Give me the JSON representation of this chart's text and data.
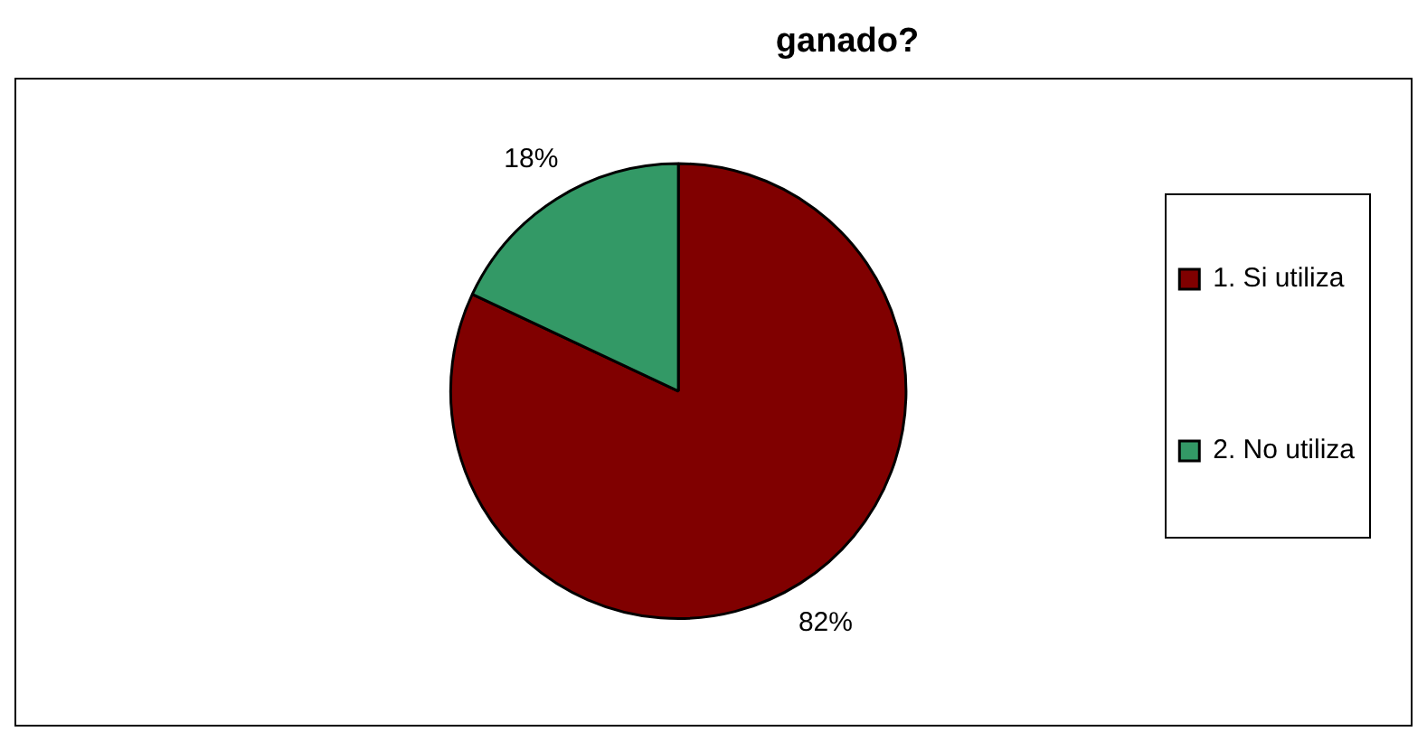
{
  "chart_data": {
    "type": "pie",
    "title": "ganado?",
    "categories": [
      "1. Si utiliza",
      "2. No utiliza"
    ],
    "values": [
      82,
      18
    ],
    "colors": [
      "#800000",
      "#339966"
    ],
    "value_labels": [
      "82%",
      "18%"
    ],
    "legend": "right"
  }
}
